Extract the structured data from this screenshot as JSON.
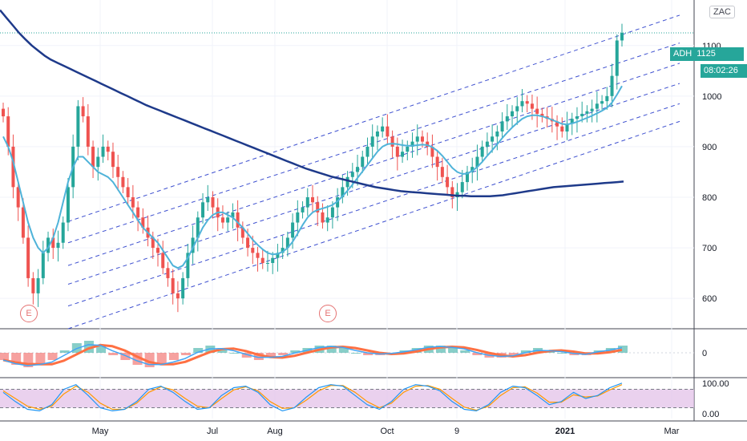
{
  "symbol": "ADH",
  "last_price": "1125",
  "countdown": "08:02:26",
  "exchange_tag": "ZAC",
  "earnings_marker": "E",
  "colors": {
    "up": "#26a69a",
    "down": "#ef5350",
    "sma_slow": "#1e3a8a",
    "sma_fast": "#4fb3d9",
    "channel": "#3f51d0",
    "stoch_band": "#e1bee7",
    "stoch_k": "#2196f3",
    "stoch_d": "#ff9800",
    "macd_hist_up": "#26a69a",
    "macd_hist_down": "#ef5350"
  },
  "x_ticks": [
    "May",
    "Jul",
    "Aug",
    "Oct",
    "9",
    "2021",
    "Mar"
  ],
  "chart_data": [
    {
      "type": "candlestick",
      "panel": "price",
      "yticks": [
        600,
        700,
        800,
        900,
        1000,
        1100
      ],
      "ytick_labels": [
        "600",
        "700",
        "800",
        "900",
        "1000",
        "1100"
      ],
      "ylim": [
        540,
        1190
      ],
      "last_value": 1125,
      "series": [
        {
          "name": "close",
          "values": [
            960,
            900,
            820,
            780,
            720,
            640,
            610,
            640,
            690,
            720,
            700,
            710,
            750,
            820,
            900,
            980,
            960,
            900,
            860,
            880,
            900,
            890,
            860,
            840,
            820,
            800,
            780,
            760,
            740,
            720,
            700,
            690,
            660,
            640,
            610,
            600,
            640,
            690,
            720,
            760,
            790,
            800,
            780,
            760,
            750,
            760,
            770,
            740,
            720,
            700,
            690,
            680,
            670,
            670,
            680,
            690,
            700,
            720,
            750,
            770,
            780,
            800,
            790,
            770,
            750,
            760,
            780,
            800,
            820,
            840,
            850,
            860,
            880,
            900,
            920,
            930,
            940,
            920,
            900,
            880,
            890,
            900,
            910,
            920,
            910,
            900,
            880,
            860,
            840,
            820,
            800,
            810,
            830,
            850,
            860,
            880,
            900,
            910,
            920,
            930,
            950,
            960,
            970,
            980,
            990,
            985,
            975,
            965,
            960,
            955,
            950,
            940,
            930,
            945,
            955,
            960,
            965,
            970,
            975,
            985,
            990,
            1000,
            1040,
            1110,
            1125
          ]
        },
        {
          "name": "sma_fast",
          "values": [
            920,
            900,
            870,
            830,
            790,
            750,
            720,
            700,
            690,
            700,
            720,
            750,
            790,
            830,
            860,
            880,
            880,
            870,
            860,
            850,
            845,
            840,
            830,
            815,
            800,
            785,
            770,
            755,
            740,
            730,
            720,
            710,
            695,
            680,
            665,
            660,
            665,
            680,
            700,
            720,
            740,
            755,
            765,
            770,
            770,
            765,
            760,
            750,
            740,
            728,
            716,
            706,
            697,
            690,
            687,
            688,
            692,
            700,
            712,
            728,
            745,
            760,
            770,
            775,
            778,
            781,
            785,
            792,
            802,
            813,
            825,
            838,
            851,
            864,
            877,
            890,
            900,
            905,
            906,
            905,
            903,
            902,
            902,
            903,
            904,
            903,
            899,
            892,
            882,
            870,
            858,
            850,
            846,
            847,
            852,
            860,
            870,
            882,
            893,
            905,
            917,
            928,
            938,
            947,
            955,
            960,
            962,
            962,
            960,
            957,
            953,
            949,
            945,
            944,
            946,
            949,
            953,
            957,
            961,
            966,
            971,
            977,
            987,
            1003,
            1020
          ]
        },
        {
          "name": "sma_slow",
          "values": [
            1170,
            1155,
            1140,
            1125,
            1112,
            1100,
            1090,
            1080,
            1072,
            1066,
            1060,
            1054,
            1048,
            1042,
            1036,
            1030,
            1024,
            1018,
            1012,
            1006,
            1000,
            994,
            988,
            982,
            977,
            972,
            967,
            962,
            957,
            952,
            947,
            942,
            937,
            932,
            927,
            922,
            917,
            912,
            907,
            902,
            897,
            892,
            887,
            882,
            877,
            872,
            867,
            862,
            857,
            853,
            849,
            845,
            841,
            838,
            835,
            832,
            829,
            826,
            823,
            820,
            818,
            816,
            814,
            812,
            811,
            810,
            809,
            808,
            807,
            806,
            805,
            804,
            803,
            803,
            802,
            802,
            802,
            802,
            803,
            804,
            806,
            808,
            810,
            812,
            814,
            816,
            818,
            820,
            821,
            822,
            823,
            824,
            825,
            826,
            827,
            828,
            829,
            830,
            831
          ]
        }
      ],
      "channel_lines": [
        {
          "name": "upper",
          "start": 752,
          "end": 1160
        },
        {
          "name": "upper-mid",
          "start": 710,
          "end": 1105
        },
        {
          "name": "mid-upper",
          "start": 665,
          "end": 1065
        },
        {
          "name": "mid",
          "start": 628,
          "end": 1025
        },
        {
          "name": "lower-mid",
          "start": 585,
          "end": 985
        },
        {
          "name": "lower",
          "start": 540,
          "end": 950
        }
      ]
    },
    {
      "type": "bar+line",
      "panel": "macd",
      "yticks": [
        0
      ],
      "ytick_labels": [
        "0"
      ],
      "ylim": [
        -1,
        1
      ],
      "series": [
        {
          "name": "histogram",
          "values": [
            -0.3,
            -0.5,
            -0.6,
            -0.5,
            -0.3,
            0.1,
            0.4,
            0.5,
            0.3,
            -0.1,
            -0.3,
            -0.5,
            -0.6,
            -0.5,
            -0.3,
            -0.1,
            0.2,
            0.3,
            0.2,
            0.0,
            -0.2,
            -0.3,
            -0.2,
            -0.1,
            0.1,
            0.2,
            0.3,
            0.3,
            0.2,
            0.0,
            -0.1,
            -0.1,
            0.0,
            0.1,
            0.2,
            0.3,
            0.3,
            0.2,
            0.1,
            -0.1,
            -0.2,
            -0.2,
            -0.1,
            0.1,
            0.2,
            0.1,
            0.0,
            -0.1,
            -0.1,
            0.1,
            0.2,
            0.3
          ]
        }
      ]
    },
    {
      "type": "line",
      "panel": "stochastic",
      "yticks": [
        0,
        100
      ],
      "ytick_labels": [
        "0.00",
        "100.00"
      ],
      "ylim": [
        -15,
        115
      ],
      "band": [
        20,
        80
      ],
      "series": [
        {
          "name": "%K",
          "values": [
            70,
            40,
            15,
            10,
            30,
            80,
            95,
            60,
            20,
            10,
            15,
            40,
            80,
            90,
            70,
            40,
            15,
            20,
            60,
            85,
            90,
            70,
            30,
            10,
            20,
            55,
            85,
            95,
            90,
            60,
            30,
            15,
            40,
            80,
            95,
            90,
            75,
            40,
            15,
            10,
            30,
            70,
            90,
            85,
            60,
            30,
            40,
            70,
            50,
            60,
            85,
            100
          ]
        },
        {
          "name": "%D",
          "values": [
            75,
            50,
            25,
            15,
            25,
            65,
            90,
            70,
            35,
            15,
            15,
            35,
            70,
            88,
            78,
            50,
            25,
            20,
            50,
            78,
            88,
            75,
            40,
            18,
            20,
            45,
            75,
            92,
            92,
            70,
            40,
            20,
            35,
            70,
            90,
            92,
            80,
            50,
            22,
            12,
            25,
            60,
            85,
            88,
            68,
            38,
            38,
            62,
            55,
            58,
            78,
            95
          ]
        }
      ]
    }
  ]
}
